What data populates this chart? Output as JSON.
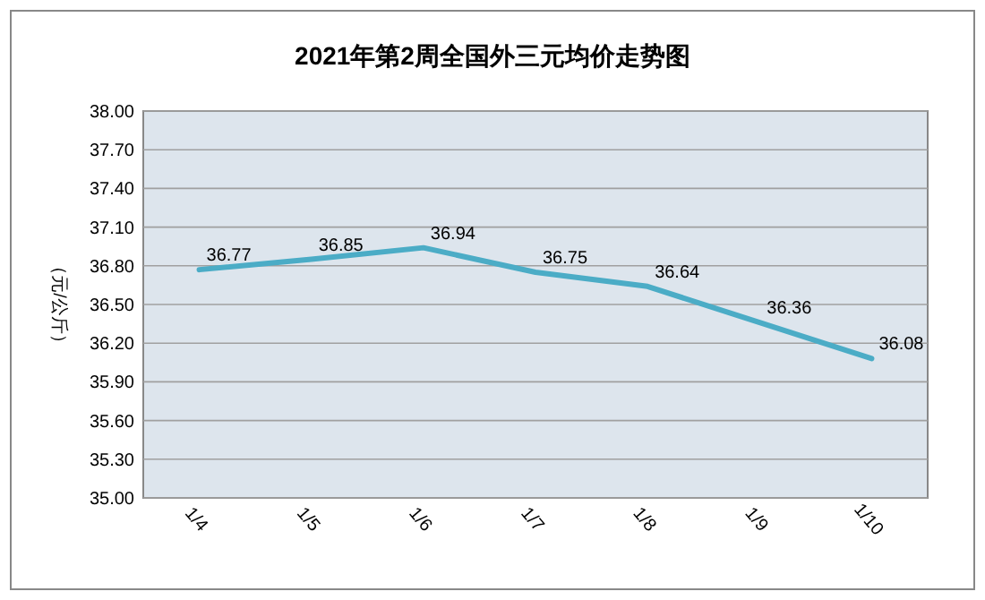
{
  "chart_data": {
    "type": "line",
    "title": "2021年第2周全国外三元均价走势图",
    "ylabel": "（元/公斤）",
    "categories": [
      "1/4",
      "1/5",
      "1/6",
      "1/7",
      "1/8",
      "1/9",
      "1/10"
    ],
    "series": [
      {
        "color": "#4bacc6",
        "values": [
          36.77,
          36.85,
          36.94,
          36.75,
          36.64,
          36.36,
          36.08
        ]
      }
    ],
    "ylim": [
      35.0,
      38.0
    ],
    "yticks": [
      {
        "value": 35.0,
        "label": "35.00"
      },
      {
        "value": 35.3,
        "label": "35.30"
      },
      {
        "value": 35.6,
        "label": "35.60"
      },
      {
        "value": 35.9,
        "label": "35.90"
      },
      {
        "value": 36.2,
        "label": "36.20"
      },
      {
        "value": 36.5,
        "label": "36.50"
      },
      {
        "value": 36.8,
        "label": "36.80"
      },
      {
        "value": 37.1,
        "label": "37.10"
      },
      {
        "value": 37.4,
        "label": "37.40"
      },
      {
        "value": 37.7,
        "label": "37.70"
      },
      {
        "value": 38.0,
        "label": "38.00"
      }
    ],
    "grid": "y",
    "data_labels": true,
    "marker": "none",
    "line_style": "solid"
  }
}
